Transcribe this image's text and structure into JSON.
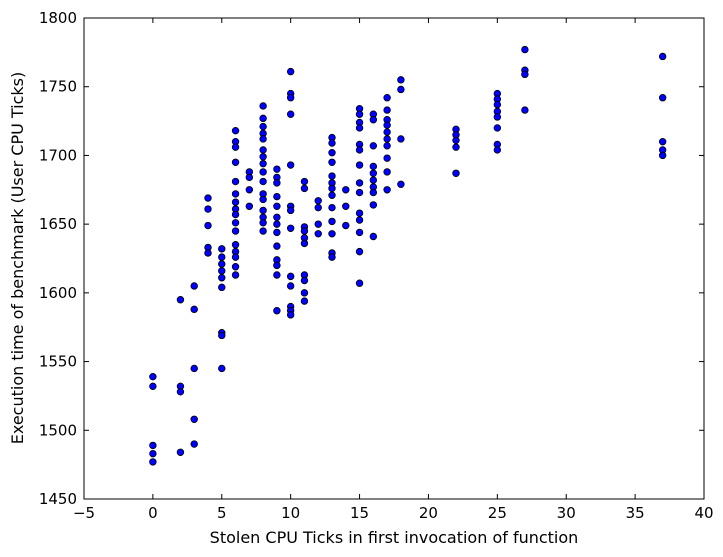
{
  "chart_data": {
    "type": "scatter",
    "title": "",
    "xlabel": "Stolen CPU Ticks in first invocation of function",
    "ylabel": "Execution time of benchmark (User CPU Ticks)",
    "xlim": [
      -5,
      40
    ],
    "ylim": [
      1450,
      1800
    ],
    "xticks": [
      -5,
      0,
      5,
      10,
      15,
      20,
      25,
      30,
      35,
      40
    ],
    "yticks": [
      1450,
      1500,
      1550,
      1600,
      1650,
      1700,
      1750,
      1800
    ],
    "grid": false,
    "marker_color": "#0000ff",
    "series": [
      {
        "points": [
          [
            0,
            1539
          ],
          [
            0,
            1532
          ],
          [
            0,
            1489
          ],
          [
            0,
            1483
          ],
          [
            0,
            1477
          ],
          [
            2,
            1595
          ],
          [
            2,
            1532
          ],
          [
            2,
            1528
          ],
          [
            2,
            1484
          ],
          [
            3,
            1605
          ],
          [
            3,
            1588
          ],
          [
            3,
            1545
          ],
          [
            3,
            1508
          ],
          [
            3,
            1490
          ],
          [
            4,
            1669
          ],
          [
            4,
            1661
          ],
          [
            4,
            1649
          ],
          [
            4,
            1633
          ],
          [
            4,
            1629
          ],
          [
            5,
            1632
          ],
          [
            5,
            1626
          ],
          [
            5,
            1621
          ],
          [
            5,
            1616
          ],
          [
            5,
            1611
          ],
          [
            5,
            1604
          ],
          [
            5,
            1571
          ],
          [
            5,
            1569
          ],
          [
            5,
            1545
          ],
          [
            6,
            1718
          ],
          [
            6,
            1710
          ],
          [
            6,
            1706
          ],
          [
            6,
            1695
          ],
          [
            6,
            1681
          ],
          [
            6,
            1672
          ],
          [
            6,
            1666
          ],
          [
            6,
            1661
          ],
          [
            6,
            1657
          ],
          [
            6,
            1651
          ],
          [
            6,
            1645
          ],
          [
            6,
            1635
          ],
          [
            6,
            1630
          ],
          [
            6,
            1626
          ],
          [
            6,
            1619
          ],
          [
            6,
            1613
          ],
          [
            7,
            1688
          ],
          [
            7,
            1684
          ],
          [
            7,
            1675
          ],
          [
            7,
            1663
          ],
          [
            8,
            1736
          ],
          [
            8,
            1727
          ],
          [
            8,
            1721
          ],
          [
            8,
            1716
          ],
          [
            8,
            1712
          ],
          [
            8,
            1704
          ],
          [
            8,
            1699
          ],
          [
            8,
            1694
          ],
          [
            8,
            1688
          ],
          [
            8,
            1681
          ],
          [
            8,
            1672
          ],
          [
            8,
            1668
          ],
          [
            8,
            1660
          ],
          [
            8,
            1655
          ],
          [
            8,
            1651
          ],
          [
            8,
            1645
          ],
          [
            9,
            1690
          ],
          [
            9,
            1684
          ],
          [
            9,
            1680
          ],
          [
            9,
            1670
          ],
          [
            9,
            1663
          ],
          [
            9,
            1655
          ],
          [
            9,
            1650
          ],
          [
            9,
            1644
          ],
          [
            9,
            1634
          ],
          [
            9,
            1624
          ],
          [
            9,
            1620
          ],
          [
            9,
            1613
          ],
          [
            9,
            1587
          ],
          [
            10,
            1761
          ],
          [
            10,
            1745
          ],
          [
            10,
            1742
          ],
          [
            10,
            1730
          ],
          [
            10,
            1693
          ],
          [
            10,
            1663
          ],
          [
            10,
            1660
          ],
          [
            10,
            1647
          ],
          [
            10,
            1612
          ],
          [
            10,
            1605
          ],
          [
            10,
            1590
          ],
          [
            10,
            1587
          ],
          [
            10,
            1584
          ],
          [
            11,
            1681
          ],
          [
            11,
            1676
          ],
          [
            11,
            1648
          ],
          [
            11,
            1645
          ],
          [
            11,
            1640
          ],
          [
            11,
            1636
          ],
          [
            11,
            1613
          ],
          [
            11,
            1609
          ],
          [
            11,
            1600
          ],
          [
            11,
            1594
          ],
          [
            12,
            1667
          ],
          [
            12,
            1662
          ],
          [
            12,
            1650
          ],
          [
            12,
            1643
          ],
          [
            13,
            1713
          ],
          [
            13,
            1709
          ],
          [
            13,
            1702
          ],
          [
            13,
            1695
          ],
          [
            13,
            1685
          ],
          [
            13,
            1680
          ],
          [
            13,
            1676
          ],
          [
            13,
            1671
          ],
          [
            13,
            1662
          ],
          [
            13,
            1652
          ],
          [
            13,
            1643
          ],
          [
            13,
            1629
          ],
          [
            13,
            1626
          ],
          [
            14,
            1675
          ],
          [
            14,
            1663
          ],
          [
            14,
            1649
          ],
          [
            15,
            1734
          ],
          [
            15,
            1730
          ],
          [
            15,
            1724
          ],
          [
            15,
            1720
          ],
          [
            15,
            1708
          ],
          [
            15,
            1704
          ],
          [
            15,
            1693
          ],
          [
            15,
            1680
          ],
          [
            15,
            1673
          ],
          [
            15,
            1658
          ],
          [
            15,
            1653
          ],
          [
            15,
            1644
          ],
          [
            15,
            1630
          ],
          [
            15,
            1607
          ],
          [
            16,
            1730
          ],
          [
            16,
            1726
          ],
          [
            16,
            1707
          ],
          [
            16,
            1692
          ],
          [
            16,
            1687
          ],
          [
            16,
            1682
          ],
          [
            16,
            1677
          ],
          [
            16,
            1673
          ],
          [
            16,
            1664
          ],
          [
            16,
            1641
          ],
          [
            17,
            1742
          ],
          [
            17,
            1733
          ],
          [
            17,
            1726
          ],
          [
            17,
            1722
          ],
          [
            17,
            1717
          ],
          [
            17,
            1712
          ],
          [
            17,
            1707
          ],
          [
            17,
            1698
          ],
          [
            17,
            1688
          ],
          [
            17,
            1675
          ],
          [
            18,
            1755
          ],
          [
            18,
            1748
          ],
          [
            18,
            1712
          ],
          [
            18,
            1679
          ],
          [
            22,
            1719
          ],
          [
            22,
            1715
          ],
          [
            22,
            1711
          ],
          [
            22,
            1706
          ],
          [
            22,
            1687
          ],
          [
            25,
            1745
          ],
          [
            25,
            1741
          ],
          [
            25,
            1737
          ],
          [
            25,
            1732
          ],
          [
            25,
            1728
          ],
          [
            25,
            1720
          ],
          [
            25,
            1708
          ],
          [
            25,
            1704
          ],
          [
            27,
            1777
          ],
          [
            27,
            1762
          ],
          [
            27,
            1759
          ],
          [
            27,
            1733
          ],
          [
            37,
            1772
          ],
          [
            37,
            1742
          ],
          [
            37,
            1710
          ],
          [
            37,
            1704
          ],
          [
            37,
            1700
          ]
        ]
      }
    ]
  }
}
